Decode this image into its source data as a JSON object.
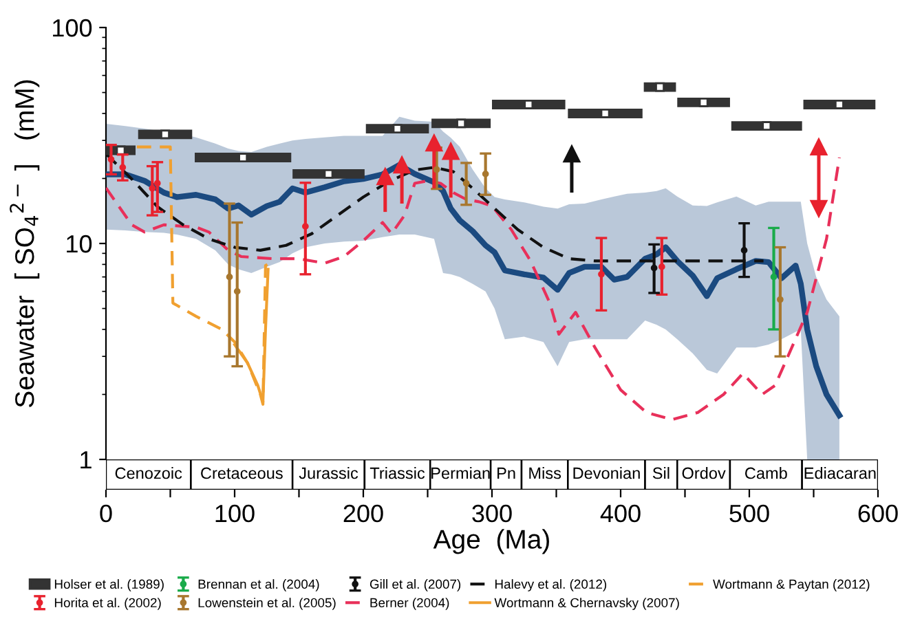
{
  "chart_data": [
    {
      "type": "line",
      "ylabel": "Seawater  [ SO$_{4}$$^{2−}$ ]   (mM)",
      "log": "y",
      "xlim": [
        0,
        600
      ],
      "ylim": [
        1,
        100
      ],
      "yticks": [
        1,
        10,
        100
      ],
      "tick_labels": "y",
      "grid": false,
      "legend": "bottom",
      "series": [
        {
          "type": "line",
          "color": "#1b4a80",
          "line_style": "solid",
          "x": [
            0,
            15,
            30,
            45,
            55,
            70,
            85,
            95,
            103,
            113,
            125,
            135,
            145,
            155,
            170,
            185,
            200,
            215,
            228,
            240,
            255,
            262,
            268,
            275,
            285,
            295,
            302,
            310,
            325,
            340,
            351,
            360,
            372,
            385,
            395,
            405,
            419,
            428,
            435,
            444,
            456,
            467,
            475,
            490,
            505,
            515,
            525,
            536,
            540,
            545,
            552,
            560,
            570
          ],
          "values": [
            20.9,
            20.9,
            19.5,
            17.2,
            16.4,
            16.8,
            16.0,
            14.5,
            15.0,
            13.6,
            14.9,
            15.6,
            18.0,
            17.2,
            18.2,
            19.4,
            19.9,
            20.9,
            23.1,
            21.0,
            19.2,
            17.5,
            14.5,
            12.8,
            11.4,
            9.8,
            9.1,
            7.5,
            7.2,
            6.95,
            6.1,
            7.3,
            7.8,
            7.8,
            6.8,
            7.0,
            8.5,
            8.9,
            9.6,
            8.3,
            7.1,
            5.7,
            6.9,
            7.6,
            8.3,
            8.2,
            6.9,
            7.9,
            6.5,
            4.0,
            2.7,
            2.0,
            1.6
          ],
          "upper": [
            35.8,
            35,
            34,
            33,
            32.5,
            31,
            29,
            27.5,
            26.8,
            26.5,
            28,
            29,
            30,
            30.5,
            31,
            31.5,
            31.5,
            31.5,
            38.6,
            37,
            36.6,
            33,
            30.9,
            28,
            22,
            18,
            16.4,
            16,
            15.5,
            14.8,
            14.5,
            15.2,
            15.3,
            16,
            16.5,
            17,
            17.2,
            17.5,
            18,
            16.5,
            15,
            14.9,
            15.5,
            16.5,
            15,
            15.6,
            15.6,
            15.6,
            15.6,
            10,
            7,
            5.5,
            4.6
          ],
          "lower": [
            11.6,
            11.5,
            11.3,
            11.2,
            11.0,
            10.5,
            9.3,
            8.0,
            7.6,
            7.3,
            7.8,
            8.2,
            9.0,
            9.6,
            10,
            10.2,
            10.3,
            10.7,
            11.0,
            11.0,
            10.5,
            7.3,
            7.2,
            7.0,
            6.5,
            6.0,
            5.0,
            3.6,
            3.7,
            3.5,
            2.7,
            3.5,
            3.6,
            3.6,
            3.6,
            3.6,
            4.4,
            4.2,
            4.0,
            3.6,
            3.1,
            2.6,
            2.5,
            3.3,
            3.3,
            3.4,
            3.6,
            3.9,
            4.0,
            1.0,
            1.0,
            1.0,
            1.0
          ]
        },
        {
          "type": "scatter",
          "name": "Holser et al. (1989)",
          "color": "#333333",
          "marker": "square",
          "x": [
            11.5,
            46,
            106.5,
            173,
            226.5,
            276,
            328.5,
            388,
            430.5,
            464.5,
            513.5,
            570
          ],
          "values": [
            27,
            32,
            25,
            21,
            34,
            36,
            44,
            40,
            53,
            45,
            35,
            44
          ],
          "xerrors": [
            11.5,
            21,
            37.5,
            28,
            24.5,
            23,
            28.5,
            29,
            12.5,
            20.5,
            27.5,
            28
          ]
        },
        {
          "type": "scatter",
          "name": "Horita et al. (2002)",
          "color": "#e8222e",
          "marker": "circle",
          "x": [
            4,
            13,
            36,
            40,
            155,
            385,
            432
          ],
          "values": [
            24.5,
            22.5,
            18,
            19,
            12,
            7.2,
            7.8
          ],
          "errors": [
            [
              20.9,
              28.6
            ],
            [
              19.6,
              25.8
            ],
            [
              13.5,
              22.8
            ],
            [
              14,
              23.8
            ],
            [
              7.2,
              19.1
            ],
            [
              4.9,
              10.6
            ],
            [
              5.8,
              10.6
            ]
          ]
        },
        {
          "type": "scatter",
          "name": "Brennan et al. (2004)",
          "color": "#1aab4a",
          "marker": "circle",
          "x": [
            519
          ],
          "values": [
            7
          ],
          "errors": [
            [
              4,
              11.8
            ]
          ]
        },
        {
          "type": "scatter",
          "name": "Lowenstein et al. (2005)",
          "color": "#a8772e",
          "marker": "circle",
          "x": [
            96,
            102,
            257,
            280,
            295,
            524
          ],
          "values": [
            7,
            6,
            22,
            19,
            21,
            5.5
          ],
          "errors": [
            [
              3,
              15.3
            ],
            [
              2.7,
              12.5
            ],
            [
              17.9,
              27.8
            ],
            [
              15.1,
              23.6
            ],
            [
              16.8,
              26.1
            ],
            [
              3,
              9.6
            ]
          ]
        },
        {
          "type": "scatter",
          "name": "Gill et al. (2007)",
          "color": "#111111",
          "marker": "circle",
          "x": [
            426,
            496
          ],
          "values": [
            7.7,
            9.3
          ],
          "errors": [
            [
              5.9,
              9.9
            ],
            [
              7,
              12.4
            ]
          ]
        },
        {
          "type": "line",
          "name": "Berner (2004)",
          "color": "#e8305a",
          "line_style": "dashed",
          "x": [
            0,
            20,
            30,
            45,
            70,
            80,
            95,
            105,
            130,
            150,
            170,
            185,
            200,
            215,
            222,
            232,
            240,
            250,
            260,
            270,
            280,
            290,
            300,
            315,
            330,
            345,
            352,
            365,
            380,
            400,
            420,
            440,
            460,
            480,
            495,
            510,
            520,
            530,
            545,
            560,
            570
          ],
          "values": [
            18.1,
            12.2,
            11.3,
            12.2,
            11.9,
            11.3,
            9.3,
            8.7,
            8.5,
            8.5,
            8.1,
            8.7,
            10.3,
            12.5,
            11.1,
            13.5,
            19.0,
            19.5,
            19.0,
            17.2,
            16.0,
            15.6,
            14.9,
            11.6,
            8.3,
            5.3,
            3.8,
            4.8,
            3.3,
            2.1,
            1.65,
            1.53,
            1.65,
            2.0,
            2.5,
            2.0,
            2.2,
            3.0,
            4.8,
            10.5,
            25
          ]
        },
        {
          "type": "line",
          "name": "Halevy et al. (2012)",
          "color": "#111111",
          "line_style": "dashed",
          "x": [
            0,
            20,
            40,
            60,
            80,
            100,
            120,
            140,
            160,
            180,
            200,
            220,
            240,
            255,
            270,
            285,
            300,
            320,
            340,
            360,
            380,
            400,
            450,
            511
          ],
          "values": [
            26,
            19.9,
            14.8,
            12.2,
            10.5,
            9.6,
            9.3,
            9.8,
            11.1,
            13.5,
            16.4,
            19.4,
            21.9,
            22.5,
            21.5,
            18.0,
            14.9,
            11.6,
            9.6,
            8.5,
            8.3,
            8.3,
            8.3,
            8.3
          ]
        },
        {
          "type": "line",
          "name": "Wortmann & Chernavsky (2007)",
          "color": "#f0a030",
          "line_style": "solid",
          "x": [
            100,
            110,
            118,
            122,
            124,
            126
          ],
          "values": [
            3.4,
            2.8,
            2.2,
            1.85,
            4,
            7.6
          ]
        },
        {
          "type": "line",
          "name": "Wortmann & Paytan (2012)",
          "color": "#f0a030",
          "line_style": "dashed",
          "x": [
            24,
            50,
            52,
            70,
            90,
            100,
            110,
            120,
            122,
            124,
            127
          ],
          "values": [
            28,
            28,
            5.3,
            4.6,
            4.0,
            3.5,
            2.8,
            2.0,
            1.8,
            7.9,
            8.1
          ]
        },
        {
          "type": "scatter",
          "color": "#e8222e",
          "marker": "triangle",
          "x": [
            217,
            230,
            255,
            268,
            554,
            554
          ],
          "values": [
            20.4,
            23.1,
            29.2,
            26.7,
            28,
            14.5
          ],
          "errors": [
            [
              14,
              20.4
            ],
            [
              15.3,
              23.1
            ],
            [
              18,
              29.2
            ],
            [
              16.3,
              26.7
            ],
            [
              14.5,
              28
            ],
            [
              14.5,
              28
            ]
          ]
        },
        {
          "type": "scatter",
          "color": "#111111",
          "marker": "triangle",
          "x": [
            362
          ],
          "values": [
            26
          ],
          "errors": [
            [
              17.2,
              26
            ]
          ]
        }
      ]
    },
    {
      "type": "bar",
      "orientation": "horizontal",
      "stacked": true,
      "categories": [
        null
      ],
      "xlabel": "Age  (Ma)",
      "tick_labels": "x",
      "xlim": [
        0,
        600
      ],
      "xticks": [
        0,
        {
          "value": 50,
          "label": null
        },
        100,
        {
          "value": 150,
          "label": null
        },
        200,
        {
          "value": 250,
          "label": null
        },
        300,
        {
          "value": 350,
          "label": null
        },
        400,
        {
          "value": 450,
          "label": null
        },
        500,
        {
          "value": 550,
          "label": null
        },
        600
      ],
      "series": [
        {
          "name": "Cenozoic",
          "color": "#ffffff",
          "values": [
            66
          ]
        },
        {
          "name": "Cretaceous",
          "color": "#ffffff",
          "values": [
            79
          ]
        },
        {
          "name": "Jurassic",
          "color": "#ffffff",
          "values": [
            56
          ]
        },
        {
          "name": "Triassic",
          "color": "#ffffff",
          "values": [
            51
          ]
        },
        {
          "name": "Permian",
          "color": "#ffffff",
          "values": [
            47
          ]
        },
        {
          "name": "Pn",
          "color": "#ffffff",
          "values": [
            24
          ]
        },
        {
          "name": "Miss",
          "color": "#ffffff",
          "values": [
            36
          ]
        },
        {
          "name": "Devonian",
          "color": "#ffffff",
          "values": [
            60
          ]
        },
        {
          "name": "Sil",
          "color": "#ffffff",
          "values": [
            25
          ]
        },
        {
          "name": "Ordov",
          "color": "#ffffff",
          "values": [
            41
          ]
        },
        {
          "name": "Camb",
          "color": "#ffffff",
          "values": [
            56
          ]
        },
        {
          "name": "Ediacaran",
          "color": "#ffffff",
          "values": [
            59
          ]
        }
      ]
    }
  ]
}
